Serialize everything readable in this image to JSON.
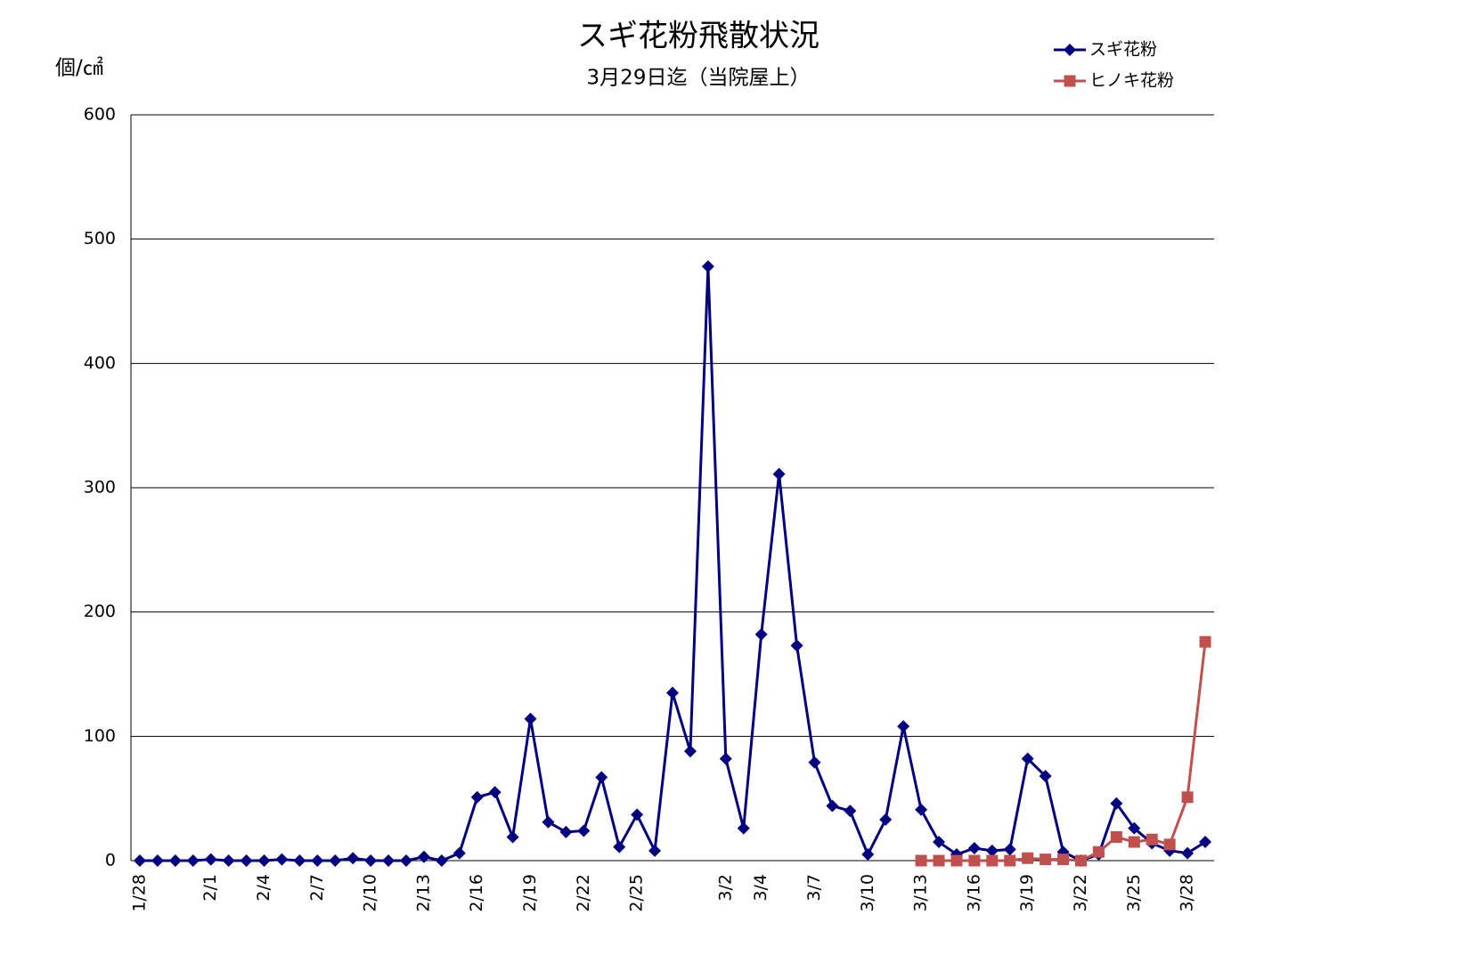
{
  "chart_data": {
    "type": "line",
    "title": "スギ花粉飛散状況",
    "subtitle": "3月29日迄（当院屋上）",
    "y_label": "個/㎠",
    "categories": [
      "1/28",
      null,
      null,
      null,
      "2/1",
      null,
      null,
      "2/4",
      null,
      null,
      "2/7",
      null,
      null,
      "2/10",
      null,
      null,
      "2/13",
      null,
      null,
      "2/16",
      null,
      null,
      "2/19",
      null,
      null,
      "2/22",
      null,
      null,
      "2/25",
      null,
      null,
      null,
      null,
      "3/2",
      null,
      "3/4",
      null,
      null,
      "3/7",
      null,
      null,
      "3/10",
      null,
      null,
      "3/13",
      null,
      null,
      "3/16",
      null,
      null,
      "3/19",
      null,
      null,
      "3/22",
      null,
      null,
      "3/25",
      null,
      null,
      "3/28",
      null
    ],
    "series": [
      {
        "name": "スギ花粉",
        "color": "#000080",
        "marker": "diamond",
        "values": [
          0,
          0,
          0,
          0,
          1,
          0,
          0,
          0,
          1,
          0,
          0,
          0,
          2,
          0,
          0,
          0,
          3,
          0,
          6,
          51,
          55,
          19,
          114,
          31,
          23,
          24,
          67,
          11,
          37,
          8,
          135,
          88,
          478,
          82,
          26,
          182,
          311,
          173,
          79,
          44,
          40,
          5,
          33,
          108,
          41,
          15,
          5,
          10,
          8,
          9,
          82,
          68,
          7,
          0,
          5,
          46,
          26,
          14,
          8,
          6,
          15
        ]
      },
      {
        "name": "ヒノキ花粉",
        "color": "#c0504d",
        "marker": "square",
        "values": [
          null,
          null,
          null,
          null,
          null,
          null,
          null,
          null,
          null,
          null,
          null,
          null,
          null,
          null,
          null,
          null,
          null,
          null,
          null,
          null,
          null,
          null,
          null,
          null,
          null,
          null,
          null,
          null,
          null,
          null,
          null,
          null,
          null,
          null,
          null,
          null,
          null,
          null,
          null,
          null,
          null,
          null,
          null,
          null,
          0,
          0,
          0,
          0,
          0,
          0,
          2,
          1,
          1,
          0,
          7,
          19,
          15,
          17,
          13,
          51,
          176
        ]
      }
    ],
    "ylim": [
      0,
      600
    ],
    "yticks": [
      0,
      100,
      200,
      300,
      400,
      500,
      600
    ],
    "grid": true,
    "legend": "upper right"
  }
}
